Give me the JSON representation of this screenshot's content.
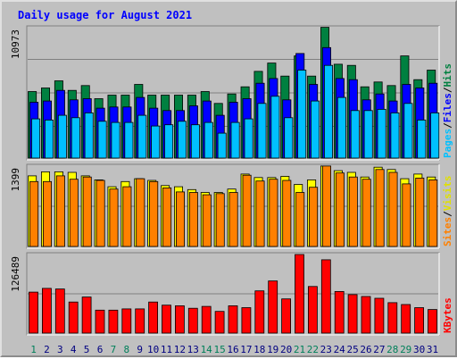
{
  "chart_data": {
    "type": "bar",
    "title": "Daily usage for August 2021",
    "days": [
      "1",
      "2",
      "3",
      "4",
      "5",
      "6",
      "7",
      "8",
      "9",
      "10",
      "11",
      "12",
      "13",
      "14",
      "15",
      "16",
      "17",
      "18",
      "19",
      "20",
      "21",
      "22",
      "23",
      "24",
      "25",
      "26",
      "27",
      "28",
      "29",
      "30",
      "31"
    ],
    "weekend_days": [
      "1",
      "7",
      "8",
      "14",
      "15",
      "21",
      "22",
      "28",
      "29"
    ],
    "panels": [
      {
        "id": "hits",
        "scale_label": "10973",
        "ymax": 10973,
        "legend": [
          "Pages",
          "/",
          "Files",
          "/",
          "Hits"
        ],
        "legend_colors": [
          "#00c0ff",
          "#000000",
          "#0000ff",
          "#000000",
          "#008040"
        ],
        "series": [
          {
            "name": "Hits",
            "color": "#008040",
            "values": [
              5600,
              5900,
              6500,
              5700,
              6100,
              5000,
              5300,
              5300,
              6200,
              5300,
              5300,
              5300,
              5300,
              5600,
              4600,
              5400,
              6000,
              7300,
              8000,
              6900,
              8600,
              6900,
              11000,
              7900,
              7800,
              6000,
              6400,
              6100,
              8600,
              6600,
              7400
            ]
          },
          {
            "name": "Files",
            "color": "#0000ff",
            "values": [
              4700,
              4800,
              5700,
              4900,
              5000,
              4200,
              4300,
              4300,
              5100,
              4200,
              4000,
              4000,
              4400,
              4800,
              3600,
              4700,
              5000,
              6300,
              6700,
              4900,
              8800,
              6200,
              9300,
              6700,
              6600,
              4900,
              5400,
              4800,
              6200,
              5900,
              6300
            ]
          },
          {
            "name": "Pages",
            "color": "#00c0ff",
            "values": [
              3300,
              3200,
              3600,
              3400,
              3800,
              3100,
              3000,
              3000,
              3600,
              2700,
              2800,
              3100,
              2800,
              3000,
              2100,
              3000,
              3300,
              4600,
              5200,
              3400,
              7400,
              4800,
              7800,
              5100,
              4000,
              4000,
              4100,
              3800,
              4600,
              3200,
              3800
            ]
          }
        ]
      },
      {
        "id": "visits",
        "scale_label": "1399",
        "ymax": 1399,
        "legend": [
          "Sites",
          "/",
          "Visits"
        ],
        "legend_colors": [
          "#ff8000",
          "#000000",
          "#e0e000"
        ],
        "series": [
          {
            "name": "Visits",
            "color": "#ffff00",
            "values": [
              1230,
              1300,
              1300,
              1290,
              1230,
              1160,
              1040,
              1130,
              1180,
              1150,
              1060,
              1040,
              990,
              940,
              940,
              1000,
              1260,
              1200,
              1200,
              1220,
              1080,
              1160,
              1400,
              1320,
              1290,
              1210,
              1380,
              1340,
              1180,
              1260,
              1210
            ]
          },
          {
            "name": "Sites",
            "color": "#ff8000",
            "values": [
              1130,
              1130,
              1230,
              1170,
              1210,
              1150,
              1000,
              1040,
              1180,
              1130,
              1020,
              950,
              940,
              900,
              920,
              940,
              1240,
              1140,
              1170,
              1150,
              940,
              1030,
              1400,
              1280,
              1210,
              1170,
              1340,
              1290,
              1090,
              1190,
              1160
            ]
          }
        ]
      },
      {
        "id": "kbytes",
        "scale_label": "126489",
        "ymax": 126489,
        "legend": [
          "KBytes"
        ],
        "legend_colors": [
          "#ff0000"
        ],
        "series": [
          {
            "name": "KBytes",
            "color": "#ff0000",
            "values": [
              66000,
              72000,
              71000,
              50000,
              58000,
              37000,
              37000,
              39000,
              39000,
              50000,
              45000,
              44000,
              40000,
              43000,
              35000,
              44000,
              41000,
              68000,
              84000,
              55000,
              126489,
              75000,
              118000,
              67000,
              62000,
              59000,
              56000,
              49000,
              46000,
              41000,
              38000
            ]
          }
        ]
      }
    ]
  }
}
